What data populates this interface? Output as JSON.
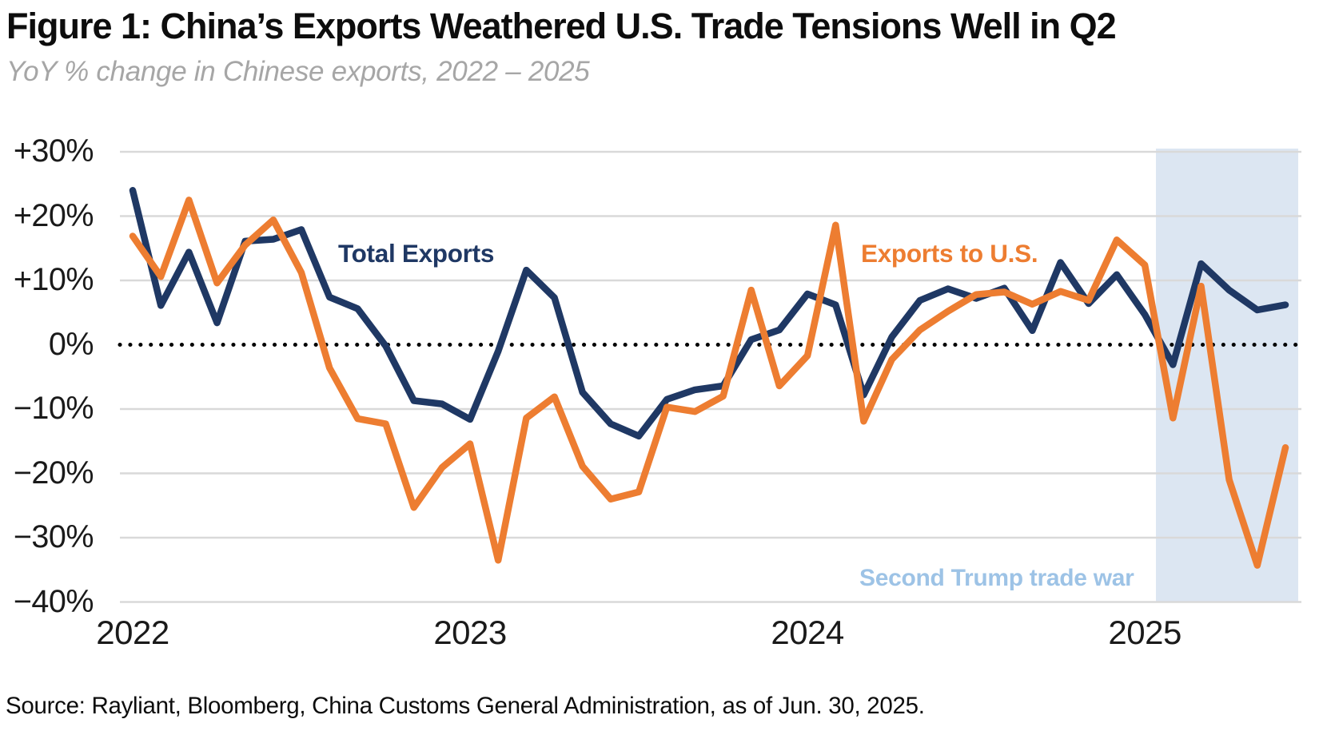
{
  "header": {
    "title": "Figure 1: China’s Exports Weathered U.S. Trade Tensions Well in Q2",
    "subtitle": "YoY % change in Chinese exports, 2022 – 2025"
  },
  "source": "Source: Rayliant, Bloomberg, China Customs General Administration, as of Jun. 30, 2025.",
  "chart_data": {
    "type": "line",
    "frequency": "monthly",
    "x_start": "2022-01",
    "x_end": "2025-06",
    "x_tick_labels": [
      "2022",
      "2023",
      "2024",
      "2025"
    ],
    "y_tick_labels": [
      "+30%",
      "+20%",
      "+10%",
      "0%",
      "−10%",
      "−20%",
      "−30%",
      "−40%"
    ],
    "y_tick_values": [
      30,
      20,
      10,
      0,
      -10,
      -20,
      -30,
      -40
    ],
    "ylim": [
      -40,
      30
    ],
    "grid": "horizontal",
    "zero_line": "dotted",
    "series": [
      {
        "name": "Total Exports",
        "color": "#1F3864",
        "values": [
          24.0,
          6.1,
          14.4,
          3.4,
          16.1,
          16.4,
          17.9,
          7.4,
          5.6,
          -0.2,
          -8.7,
          -9.2,
          -11.6,
          -1.0,
          11.6,
          7.3,
          -7.4,
          -12.3,
          -14.2,
          -8.5,
          -7.0,
          -6.4,
          0.8,
          2.3,
          7.9,
          6.2,
          -7.8,
          1.2,
          6.9,
          8.7,
          7.2,
          8.8,
          2.2,
          12.8,
          6.4,
          10.9,
          4.7,
          -3.1,
          12.6,
          8.5,
          5.4,
          6.2
        ]
      },
      {
        "name": "Exports to U.S.",
        "color": "#ED7D31",
        "values": [
          16.9,
          10.6,
          22.5,
          9.6,
          15.5,
          19.4,
          11.2,
          -3.6,
          -11.5,
          -12.3,
          -25.3,
          -19.1,
          -15.4,
          -33.5,
          -11.4,
          -8.1,
          -18.9,
          -24.0,
          -22.9,
          -9.7,
          -10.4,
          -8.0,
          8.5,
          -6.4,
          -1.7,
          18.6,
          -11.9,
          -2.3,
          2.3,
          5.2,
          7.8,
          8.2,
          6.3,
          8.3,
          6.9,
          16.3,
          12.4,
          -11.4,
          9.1,
          -21.0,
          -34.3,
          -16.0
        ]
      }
    ],
    "shaded_region": {
      "label": "Second Trump trade war",
      "label_color": "#9DC3E6",
      "from": "2025-02",
      "to": "2025-06",
      "color": "#DCE6F2"
    }
  }
}
